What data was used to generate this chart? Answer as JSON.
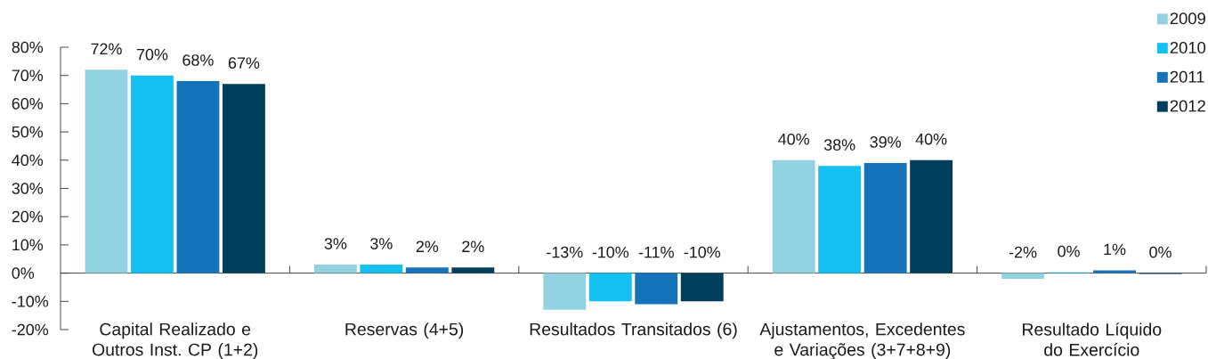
{
  "chart_data": {
    "type": "bar",
    "categories": [
      "Capital Realizado e Outros Inst. CP (1+2)",
      "Reservas (4+5)",
      "Resultados Transitados (6)",
      "Ajustamentos, Excedentes e Variações (3+7+8+9)",
      "Resultado Líquido do Exercício"
    ],
    "series": [
      {
        "name": "2009",
        "color": "#92d1df",
        "values": [
          72,
          3,
          -13,
          40,
          -2
        ],
        "value_labels": [
          "72%",
          "3%",
          "-13%",
          "40%",
          "-2%"
        ]
      },
      {
        "name": "2010",
        "color": "#14c0f0",
        "values": [
          70,
          3,
          -10,
          38,
          0.3
        ],
        "value_labels": [
          "70%",
          "3%",
          "-10%",
          "38%",
          "0%"
        ]
      },
      {
        "name": "2011",
        "color": "#1473b9",
        "values": [
          68,
          2,
          -11,
          39,
          1
        ],
        "value_labels": [
          "68%",
          "2%",
          "-11%",
          "39%",
          "1%"
        ]
      },
      {
        "name": "2012",
        "color": "#003f5c",
        "values": [
          67,
          2,
          -10,
          40,
          -0.3
        ],
        "value_labels": [
          "67%",
          "2%",
          "-10%",
          "40%",
          "0%"
        ]
      }
    ],
    "ylim": [
      -20,
      80
    ],
    "yticks": [
      {
        "value": -20,
        "label": "-20%"
      },
      {
        "value": -10,
        "label": "-10%"
      },
      {
        "value": 0,
        "label": "0%"
      },
      {
        "value": 10,
        "label": "10%"
      },
      {
        "value": 20,
        "label": "20%"
      },
      {
        "value": 30,
        "label": "30%"
      },
      {
        "value": 40,
        "label": "40%"
      },
      {
        "value": 50,
        "label": "50%"
      },
      {
        "value": 60,
        "label": "60%"
      },
      {
        "value": 70,
        "label": "70%"
      },
      {
        "value": 80,
        "label": "80%"
      }
    ],
    "legend": "top right"
  }
}
